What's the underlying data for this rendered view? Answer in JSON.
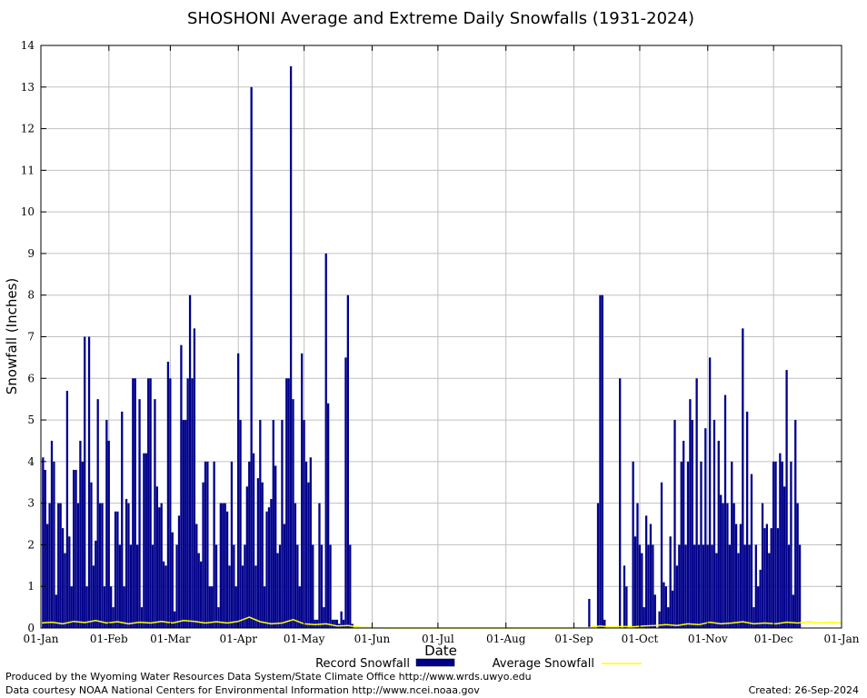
{
  "chart_data": {
    "type": "bar",
    "title": "SHOSHONI Average and Extreme Daily Snowfalls (1931-2024)",
    "xlabel": "Date",
    "ylabel": "Snowfall (Inches)",
    "ylim": [
      0,
      14
    ],
    "y_ticks": [
      "0",
      "1",
      "2",
      "3",
      "4",
      "5",
      "6",
      "7",
      "8",
      "9",
      "10",
      "11",
      "12",
      "13",
      "14"
    ],
    "x_ticks": [
      "01-Jan",
      "01-Feb",
      "01-Mar",
      "01-Apr",
      "01-May",
      "01-Jun",
      "01-Jul",
      "01-Aug",
      "01-Sep",
      "01-Oct",
      "01-Nov",
      "01-Dec",
      "01-Jan"
    ],
    "x_tick_days": [
      0,
      31,
      59,
      90,
      120,
      151,
      181,
      212,
      243,
      273,
      304,
      334,
      365
    ],
    "grid": true,
    "legend_position": "bottom",
    "series": [
      {
        "name": "Record Snowfall",
        "color": "#00008b",
        "style": "bars",
        "points": [
          [
            1,
            4.1
          ],
          [
            2,
            3.8
          ],
          [
            3,
            2.5
          ],
          [
            4,
            3.0
          ],
          [
            5,
            4.5
          ],
          [
            6,
            4.0
          ],
          [
            7,
            0.8
          ],
          [
            8,
            3.0
          ],
          [
            9,
            3.0
          ],
          [
            10,
            2.4
          ],
          [
            11,
            1.8
          ],
          [
            12,
            5.7
          ],
          [
            13,
            2.2
          ],
          [
            14,
            1.0
          ],
          [
            15,
            3.8
          ],
          [
            16,
            3.8
          ],
          [
            17,
            3.0
          ],
          [
            18,
            4.5
          ],
          [
            19,
            4.0
          ],
          [
            20,
            7.0
          ],
          [
            21,
            1.0
          ],
          [
            22,
            7.0
          ],
          [
            23,
            3.5
          ],
          [
            24,
            1.5
          ],
          [
            25,
            2.1
          ],
          [
            26,
            5.5
          ],
          [
            27,
            3.0
          ],
          [
            28,
            3.0
          ],
          [
            29,
            1.0
          ],
          [
            30,
            5.0
          ],
          [
            31,
            4.5
          ],
          [
            32,
            1.0
          ],
          [
            33,
            0.5
          ],
          [
            34,
            2.8
          ],
          [
            35,
            2.8
          ],
          [
            36,
            2.0
          ],
          [
            37,
            5.2
          ],
          [
            38,
            1.0
          ],
          [
            39,
            3.1
          ],
          [
            40,
            3.0
          ],
          [
            41,
            2.0
          ],
          [
            42,
            6.0
          ],
          [
            43,
            6.0
          ],
          [
            44,
            2.0
          ],
          [
            45,
            5.5
          ],
          [
            46,
            0.5
          ],
          [
            47,
            4.2
          ],
          [
            48,
            4.2
          ],
          [
            49,
            6.0
          ],
          [
            50,
            6.0
          ],
          [
            51,
            2.0
          ],
          [
            52,
            5.5
          ],
          [
            53,
            3.4
          ],
          [
            54,
            2.9
          ],
          [
            55,
            3.0
          ],
          [
            56,
            1.6
          ],
          [
            57,
            1.5
          ],
          [
            58,
            6.4
          ],
          [
            59,
            6.0
          ],
          [
            60,
            2.3
          ],
          [
            61,
            0.4
          ],
          [
            62,
            2.0
          ],
          [
            63,
            2.7
          ],
          [
            64,
            6.8
          ],
          [
            65,
            5.0
          ],
          [
            66,
            5.0
          ],
          [
            67,
            6.0
          ],
          [
            68,
            8.0
          ],
          [
            69,
            6.0
          ],
          [
            70,
            7.2
          ],
          [
            71,
            2.5
          ],
          [
            72,
            1.8
          ],
          [
            73,
            1.6
          ],
          [
            74,
            3.5
          ],
          [
            75,
            4.0
          ],
          [
            76,
            4.0
          ],
          [
            77,
            1.0
          ],
          [
            78,
            1.0
          ],
          [
            79,
            4.0
          ],
          [
            80,
            2.0
          ],
          [
            81,
            0.5
          ],
          [
            82,
            3.0
          ],
          [
            83,
            3.0
          ],
          [
            84,
            3.0
          ],
          [
            85,
            2.8
          ],
          [
            86,
            1.5
          ],
          [
            87,
            4.0
          ],
          [
            88,
            2.0
          ],
          [
            89,
            1.0
          ],
          [
            90,
            6.6
          ],
          [
            91,
            5.0
          ],
          [
            92,
            1.5
          ],
          [
            93,
            2.0
          ],
          [
            94,
            3.4
          ],
          [
            95,
            4.0
          ],
          [
            96,
            13.0
          ],
          [
            97,
            4.2
          ],
          [
            98,
            1.5
          ],
          [
            99,
            3.6
          ],
          [
            100,
            5.0
          ],
          [
            101,
            3.5
          ],
          [
            102,
            1.0
          ],
          [
            103,
            2.8
          ],
          [
            104,
            2.9
          ],
          [
            105,
            3.1
          ],
          [
            106,
            5.0
          ],
          [
            107,
            3.9
          ],
          [
            108,
            1.8
          ],
          [
            109,
            2.0
          ],
          [
            110,
            5.0
          ],
          [
            111,
            2.5
          ],
          [
            112,
            6.0
          ],
          [
            113,
            6.0
          ],
          [
            114,
            13.5
          ],
          [
            115,
            5.5
          ],
          [
            116,
            3.0
          ],
          [
            117,
            2.0
          ],
          [
            118,
            1.0
          ],
          [
            119,
            6.6
          ],
          [
            120,
            5.0
          ],
          [
            121,
            4.0
          ],
          [
            122,
            3.5
          ],
          [
            123,
            4.1
          ],
          [
            124,
            2.0
          ],
          [
            125,
            0.2
          ],
          [
            126,
            0.2
          ],
          [
            127,
            3.0
          ],
          [
            128,
            2.0
          ],
          [
            129,
            0.5
          ],
          [
            130,
            9.0
          ],
          [
            131,
            5.4
          ],
          [
            132,
            2.0
          ],
          [
            133,
            0.2
          ],
          [
            134,
            0.2
          ],
          [
            135,
            0.2
          ],
          [
            136,
            0.1
          ],
          [
            137,
            0.4
          ],
          [
            138,
            0.2
          ],
          [
            139,
            6.5
          ],
          [
            140,
            8.0
          ],
          [
            141,
            2.0
          ],
          [
            142,
            0.1
          ],
          [
            250,
            0.7
          ],
          [
            254,
            3.0
          ],
          [
            255,
            8.0
          ],
          [
            256,
            8.0
          ],
          [
            257,
            0.2
          ],
          [
            264,
            6.0
          ],
          [
            266,
            1.5
          ],
          [
            267,
            1.0
          ],
          [
            270,
            4.0
          ],
          [
            271,
            2.2
          ],
          [
            272,
            3.0
          ],
          [
            273,
            2.0
          ],
          [
            274,
            1.8
          ],
          [
            275,
            0.5
          ],
          [
            276,
            2.7
          ],
          [
            277,
            2.0
          ],
          [
            278,
            2.5
          ],
          [
            279,
            2.0
          ],
          [
            280,
            0.8
          ],
          [
            282,
            0.4
          ],
          [
            283,
            3.5
          ],
          [
            284,
            1.1
          ],
          [
            285,
            1.0
          ],
          [
            286,
            0.5
          ],
          [
            287,
            2.2
          ],
          [
            288,
            0.9
          ],
          [
            289,
            5.0
          ],
          [
            290,
            1.5
          ],
          [
            291,
            2.0
          ],
          [
            292,
            4.0
          ],
          [
            293,
            4.5
          ],
          [
            294,
            2.0
          ],
          [
            295,
            4.0
          ],
          [
            296,
            5.5
          ],
          [
            297,
            5.0
          ],
          [
            298,
            2.0
          ],
          [
            299,
            6.0
          ],
          [
            300,
            2.0
          ],
          [
            301,
            4.0
          ],
          [
            302,
            2.0
          ],
          [
            303,
            4.8
          ],
          [
            304,
            2.0
          ],
          [
            305,
            6.5
          ],
          [
            306,
            2.0
          ],
          [
            307,
            5.0
          ],
          [
            308,
            1.8
          ],
          [
            309,
            4.5
          ],
          [
            310,
            3.2
          ],
          [
            311,
            3.0
          ],
          [
            312,
            5.6
          ],
          [
            313,
            3.0
          ],
          [
            314,
            2.0
          ],
          [
            315,
            4.0
          ],
          [
            316,
            3.0
          ],
          [
            317,
            2.5
          ],
          [
            318,
            1.8
          ],
          [
            319,
            2.5
          ],
          [
            320,
            7.2
          ],
          [
            321,
            2.0
          ],
          [
            322,
            5.2
          ],
          [
            323,
            2.0
          ],
          [
            324,
            3.7
          ],
          [
            325,
            0.5
          ],
          [
            326,
            2.0
          ],
          [
            327,
            1.0
          ],
          [
            328,
            1.4
          ],
          [
            329,
            3.0
          ],
          [
            330,
            2.4
          ],
          [
            331,
            2.5
          ],
          [
            332,
            1.8
          ],
          [
            333,
            2.4
          ],
          [
            334,
            4.0
          ],
          [
            335,
            4.0
          ],
          [
            336,
            2.4
          ],
          [
            337,
            4.2
          ],
          [
            338,
            4.0
          ],
          [
            339,
            3.4
          ],
          [
            340,
            6.2
          ],
          [
            341,
            2.0
          ],
          [
            342,
            4.0
          ],
          [
            343,
            0.8
          ],
          [
            344,
            5.0
          ],
          [
            345,
            3.0
          ],
          [
            346,
            2.0
          ]
        ]
      },
      {
        "name": "Average Snowfall",
        "color": "#ffff00",
        "style": "line",
        "points": [
          [
            0,
            0.12
          ],
          [
            5,
            0.14
          ],
          [
            10,
            0.1
          ],
          [
            15,
            0.16
          ],
          [
            20,
            0.13
          ],
          [
            25,
            0.18
          ],
          [
            30,
            0.12
          ],
          [
            35,
            0.15
          ],
          [
            40,
            0.1
          ],
          [
            45,
            0.14
          ],
          [
            50,
            0.12
          ],
          [
            55,
            0.16
          ],
          [
            60,
            0.12
          ],
          [
            65,
            0.18
          ],
          [
            70,
            0.16
          ],
          [
            75,
            0.12
          ],
          [
            80,
            0.15
          ],
          [
            85,
            0.12
          ],
          [
            90,
            0.16
          ],
          [
            95,
            0.26
          ],
          [
            100,
            0.15
          ],
          [
            105,
            0.1
          ],
          [
            110,
            0.12
          ],
          [
            115,
            0.2
          ],
          [
            120,
            0.1
          ],
          [
            125,
            0.08
          ],
          [
            130,
            0.1
          ],
          [
            135,
            0.05
          ],
          [
            140,
            0.06
          ],
          [
            145,
            0.02
          ],
          [
            150,
            0.01
          ],
          [
            160,
            0.0
          ],
          [
            200,
            0.0
          ],
          [
            240,
            0.0
          ],
          [
            250,
            0.01
          ],
          [
            255,
            0.05
          ],
          [
            260,
            0.02
          ],
          [
            265,
            0.04
          ],
          [
            270,
            0.03
          ],
          [
            275,
            0.05
          ],
          [
            280,
            0.06
          ],
          [
            285,
            0.08
          ],
          [
            290,
            0.06
          ],
          [
            295,
            0.1
          ],
          [
            300,
            0.08
          ],
          [
            305,
            0.14
          ],
          [
            310,
            0.1
          ],
          [
            315,
            0.12
          ],
          [
            320,
            0.15
          ],
          [
            325,
            0.1
          ],
          [
            330,
            0.12
          ],
          [
            335,
            0.1
          ],
          [
            340,
            0.14
          ],
          [
            345,
            0.12
          ],
          [
            350,
            0.15
          ],
          [
            355,
            0.12
          ],
          [
            360,
            0.14
          ],
          [
            365,
            0.12
          ]
        ]
      }
    ]
  },
  "footer": {
    "line1": "Produced by the Wyoming Water Resources Data System/State Climate Office http://www.wrds.uwyo.edu",
    "line2": "Data courtesy NOAA National Centers for Environmental Information http://www.ncei.noaa.gov",
    "created": "Created:  26-Sep-2024"
  }
}
